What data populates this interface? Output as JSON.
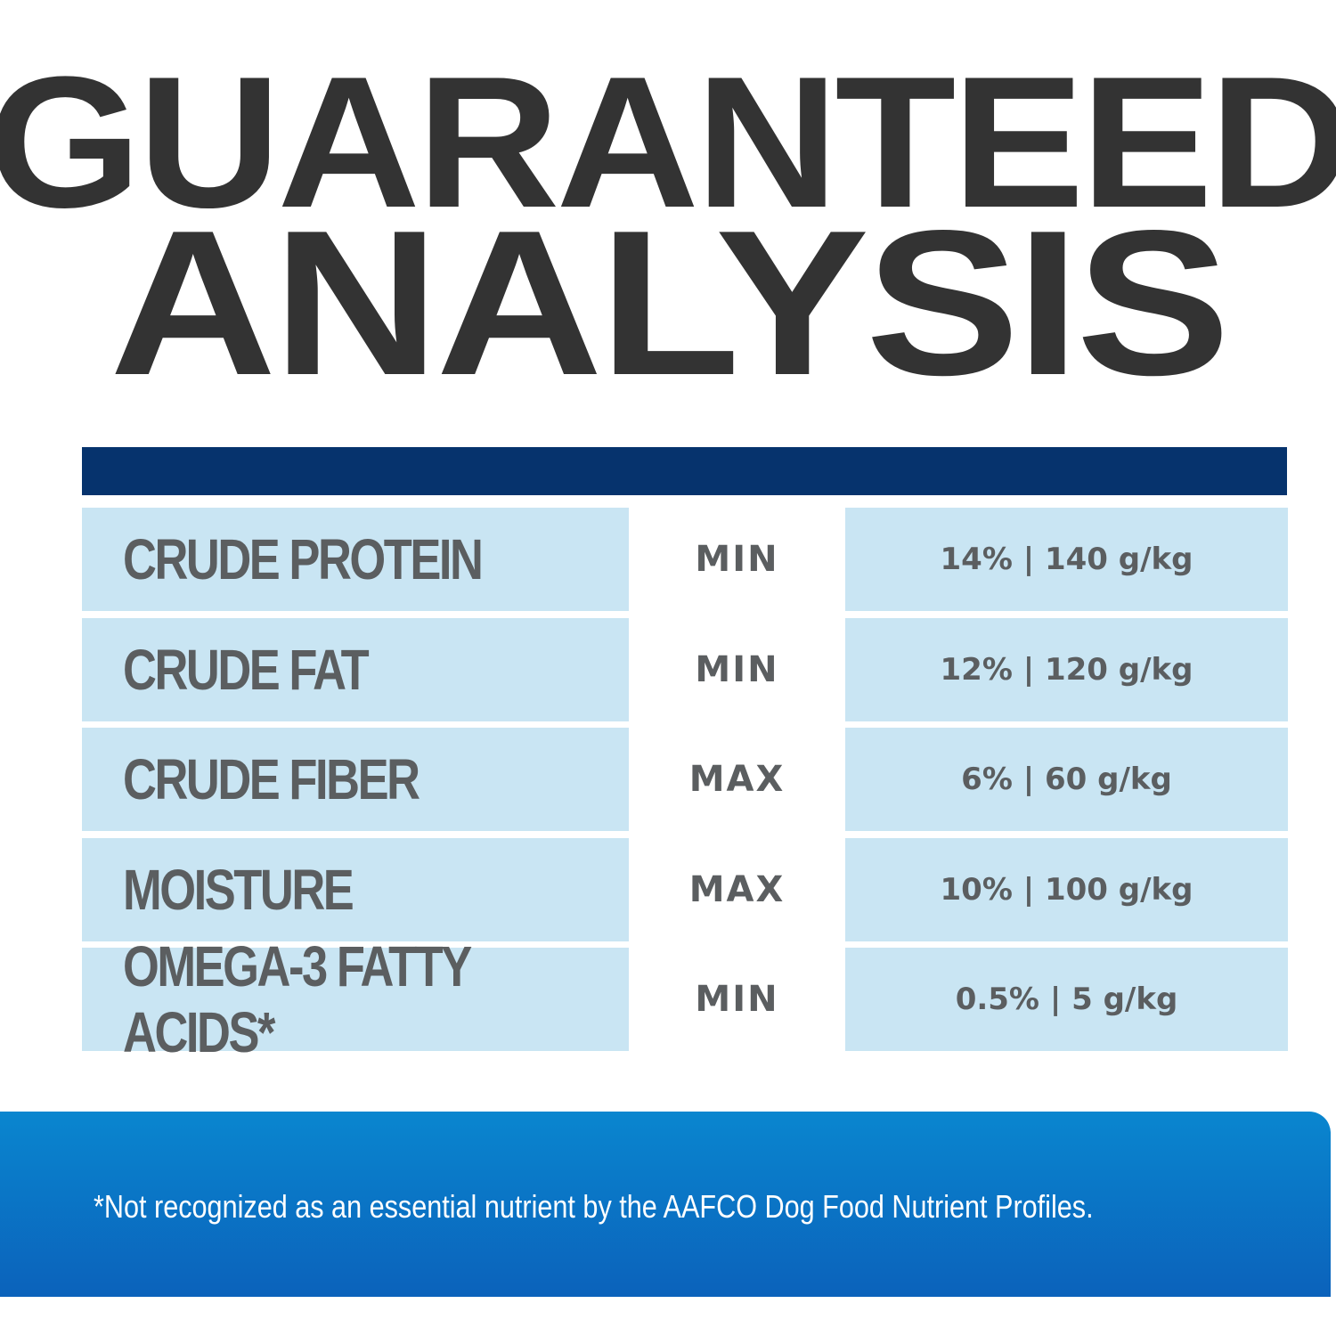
{
  "header": {
    "line1": "GUARANTEED",
    "line2": "ANALYSIS"
  },
  "table": {
    "rows": [
      [
        "CRUDE PROTEIN",
        "MIN",
        "14% | 140 g/kg"
      ],
      [
        "CRUDE FAT",
        "MIN",
        "12% | 120 g/kg"
      ],
      [
        "CRUDE FIBER",
        "MAX",
        "6% | 60 g/kg"
      ],
      [
        "MOISTURE",
        "MAX",
        "10% | 100 g/kg"
      ],
      [
        "OMEGA-3 FATTY ACIDS*",
        "MIN",
        "0.5% | 5 g/kg"
      ]
    ]
  },
  "footnote": "*Not recognized as an essential nutrient by the AAFCO Dog Food Nutrient Profiles."
}
